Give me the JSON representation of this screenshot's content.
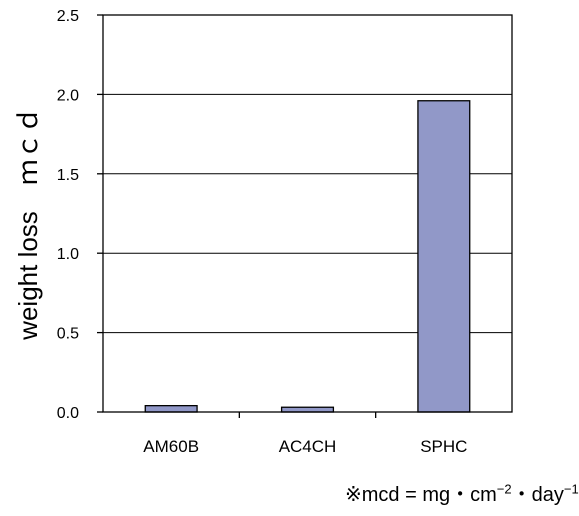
{
  "chart_data": {
    "type": "bar",
    "categories": [
      "AM60B",
      "AC4CH",
      "SPHC"
    ],
    "values": [
      0.04,
      0.03,
      1.96
    ],
    "ylabel": "weight loss　ｍｃｄ",
    "xlabel": "",
    "ylim": [
      0,
      2.5
    ],
    "yticks": [
      "0.0",
      "0.5",
      "1.0",
      "1.5",
      "2.0",
      "2.5"
    ],
    "grid": true,
    "bar_color": "#9198c8",
    "bar_edge_color": "#000000"
  },
  "footnote": {
    "mark": "※",
    "text": "mcd = mg・cm",
    "sup1": "−2",
    "text2": "・day",
    "sup2": "−1"
  }
}
